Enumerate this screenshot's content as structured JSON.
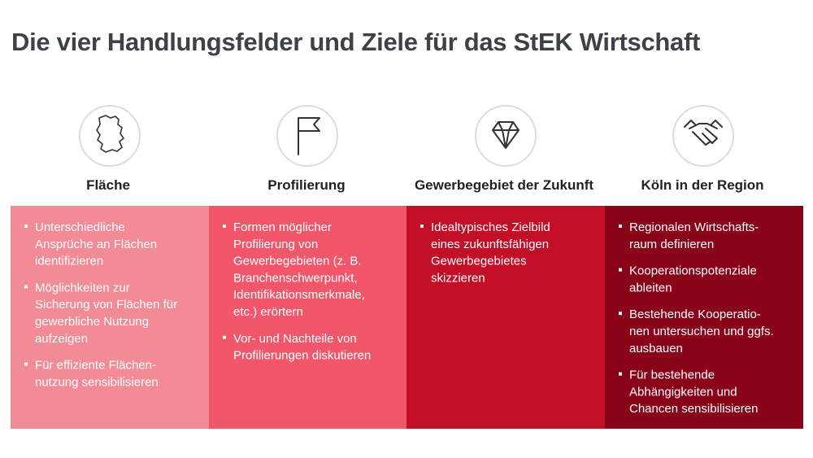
{
  "title": "Die vier Handlungsfelder und Ziele für das StEK Wirtschaft",
  "columns": [
    {
      "heading": "Fläche",
      "bullets": [
        [
          "Unterschiedliche",
          "Ansprüche an Flächen",
          "identifizieren"
        ],
        [
          "Möglichkeiten zur",
          "Sicherung von Flächen für",
          "gewerbliche Nutzung",
          "aufzeigen"
        ],
        [
          "Für effiziente Flächen-",
          "nutzung sensibilisieren"
        ]
      ]
    },
    {
      "heading": "Profilierung",
      "bullets": [
        [
          "Formen möglicher",
          "Profilierung von",
          "Gewerbegebieten (z. B.",
          "Branchenschwerpunkt,",
          "Identifikationsmerkmale,",
          "etc.) erörtern"
        ],
        [
          "Vor- und Nachteile von",
          "Profilierungen diskutieren"
        ]
      ]
    },
    {
      "heading": "Gewerbegebiet der Zukunft",
      "bullets": [
        [
          "Idealtypisches Zielbild",
          "eines zukunftsfähigen",
          "Gewerbegebietes",
          "skizzieren"
        ]
      ]
    },
    {
      "heading": "Köln in der Region",
      "bullets": [
        [
          "Regionalen Wirtschafts-",
          "raum definieren"
        ],
        [
          "Kooperationspotenziale",
          "ableiten"
        ],
        [
          "Bestehende Kooperatio-",
          "nen untersuchen und ggfs.",
          "ausbauen"
        ],
        [
          "Für bestehende",
          "Abhängigkeiten und",
          "Chancen sensibilisieren"
        ]
      ]
    }
  ]
}
